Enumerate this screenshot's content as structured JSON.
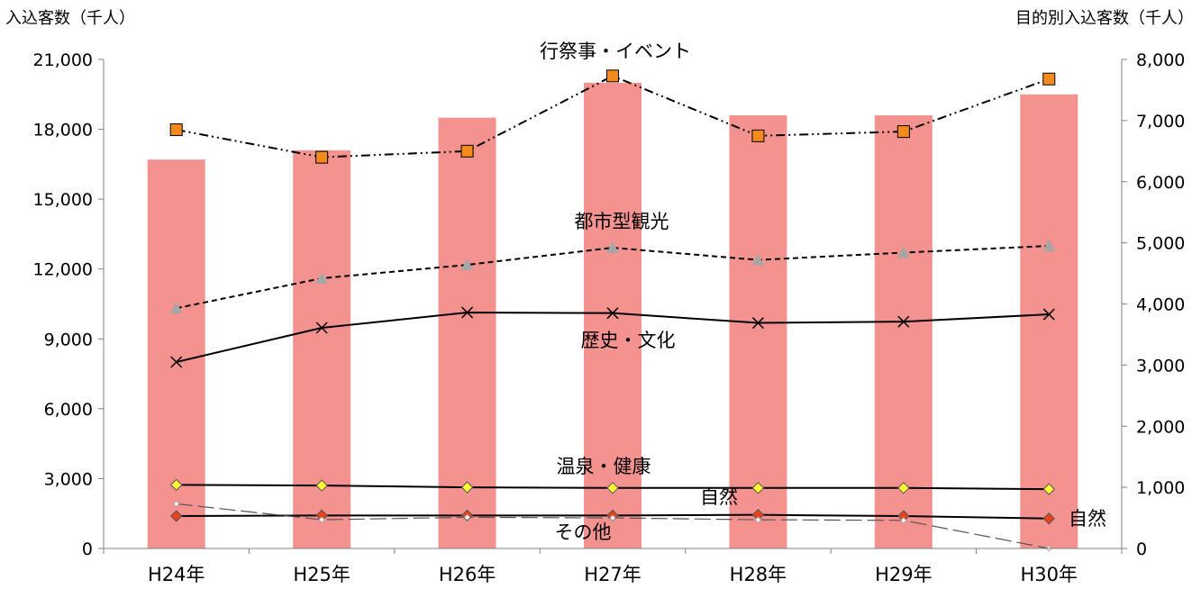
{
  "chart_data": {
    "type": "bar+line",
    "categories": [
      "H24年",
      "H25年",
      "H26年",
      "H27年",
      "H28年",
      "H29年",
      "H30年"
    ],
    "y_left": {
      "label": "入込客数（千人）",
      "ylim": [
        0,
        21000
      ],
      "ticks": [
        "0",
        "3,000",
        "6,000",
        "9,000",
        "12,000",
        "15,000",
        "18,000",
        "21,000"
      ]
    },
    "y_right": {
      "label": "目的別入込客数（千人）",
      "ylim": [
        0,
        8000
      ],
      "ticks": [
        "0",
        "1,000",
        "2,000",
        "3,000",
        "4,000",
        "5,000",
        "6,000",
        "7,000",
        "8,000"
      ]
    },
    "bars": {
      "color": "#f4928f",
      "values": [
        16700,
        17100,
        18500,
        20000,
        18600,
        18600,
        19500
      ]
    },
    "series": [
      {
        "name": "行祭事・イベント",
        "axis": "right",
        "values": [
          6850,
          6400,
          6500,
          7730,
          6750,
          6820,
          7680
        ],
        "color": "#000000",
        "dash": "dashdot",
        "marker": "square",
        "marker_color": "#f28a1e"
      },
      {
        "name": "都市型観光",
        "axis": "right",
        "values": [
          3930,
          4420,
          4640,
          4920,
          4720,
          4840,
          4950
        ],
        "color": "#000000",
        "dash": "dashed",
        "marker": "triangle",
        "marker_color": "#a6a6a6"
      },
      {
        "name": "歴史・文化",
        "axis": "right",
        "values": [
          3050,
          3610,
          3860,
          3850,
          3690,
          3710,
          3830
        ],
        "color": "#000000",
        "dash": "solid",
        "marker": "x",
        "marker_color": "#000000"
      },
      {
        "name": "温泉・健康",
        "axis": "right",
        "values": [
          1040,
          1030,
          1000,
          990,
          990,
          990,
          970
        ],
        "color": "#000000",
        "dash": "solid",
        "marker": "diamond",
        "marker_color": "#ffff33"
      },
      {
        "name": "自然",
        "axis": "right",
        "values": [
          530,
          540,
          540,
          540,
          550,
          530,
          490
        ],
        "color": "#000000",
        "dash": "solid",
        "marker": "diamond",
        "marker_color": "#e8431a"
      },
      {
        "name": "その他",
        "axis": "right",
        "values": [
          730,
          470,
          510,
          500,
          470,
          460,
          0
        ],
        "color": "#555555",
        "dash": "longdash",
        "marker": "diamond-small",
        "marker_color": "#ffffff"
      }
    ],
    "annotations": [
      "行祭事・イベント",
      "都市型観光",
      "歴史・文化",
      "温泉・健康",
      "自然",
      "その他",
      "自然"
    ],
    "grid": false
  }
}
